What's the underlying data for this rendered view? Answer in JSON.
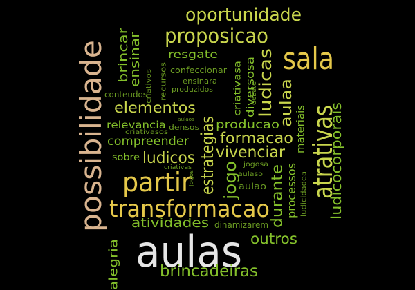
{
  "colors": {
    "background": "#000000",
    "beige": "#d9b48f",
    "gold": "#e5c84a",
    "yellow_green": "#c9d64d",
    "green": "#84c02b",
    "dark_green": "#6a9a22",
    "white": "#e6e6e6"
  },
  "words": [
    {
      "text": "aulas",
      "color": "#e6e6e6"
    },
    {
      "text": "possibilidade",
      "color": "#d9b48f"
    },
    {
      "text": "transformacao",
      "color": "#e5c84a"
    },
    {
      "text": "sala",
      "color": "#e5c84a"
    },
    {
      "text": "partir",
      "color": "#e5c84a"
    },
    {
      "text": "atrativas",
      "color": "#c9d64d"
    },
    {
      "text": "proposicao",
      "color": "#c9d64d"
    },
    {
      "text": "oportunidade",
      "color": "#c9d64d"
    },
    {
      "text": "estrategias",
      "color": "#c9d64d"
    },
    {
      "text": "ludicas",
      "color": "#c9d64d"
    },
    {
      "text": "aulaa",
      "color": "#c9d64d"
    },
    {
      "text": "elementos",
      "color": "#c9d64d"
    },
    {
      "text": "formacao",
      "color": "#c9d64d"
    },
    {
      "text": "vivenciar",
      "color": "#c9d64d"
    },
    {
      "text": "ludicos",
      "color": "#c9d64d"
    },
    {
      "text": "jogo",
      "color": "#84c02b"
    },
    {
      "text": "ludicocorporais",
      "color": "#84c02b"
    },
    {
      "text": "brincadeiras",
      "color": "#84c02b"
    },
    {
      "text": "atividades",
      "color": "#84c02b"
    },
    {
      "text": "durante",
      "color": "#84c02b"
    },
    {
      "text": "outros",
      "color": "#84c02b"
    },
    {
      "text": "brincar",
      "color": "#84c02b"
    },
    {
      "text": "ensinar",
      "color": "#84c02b"
    },
    {
      "text": "compreender",
      "color": "#84c02b"
    },
    {
      "text": "producao",
      "color": "#84c02b"
    },
    {
      "text": "processos",
      "color": "#84c02b"
    },
    {
      "text": "alegria",
      "color": "#84c02b"
    },
    {
      "text": "diversosa",
      "color": "#84c02b"
    },
    {
      "text": "materiais",
      "color": "#84c02b"
    },
    {
      "text": "resgate",
      "color": "#84c02b"
    },
    {
      "text": "relevancia",
      "color": "#84c02b"
    },
    {
      "text": "sobre",
      "color": "#84c02b"
    },
    {
      "text": "criativasa",
      "color": "#84c02b"
    },
    {
      "text": "confeccionar",
      "color": "#6a9a22"
    },
    {
      "text": "recursos",
      "color": "#6a9a22"
    },
    {
      "text": "criativos",
      "color": "#6a9a22"
    },
    {
      "text": "conteudos",
      "color": "#6a9a22"
    },
    {
      "text": "ensinara",
      "color": "#6a9a22"
    },
    {
      "text": "produzidos",
      "color": "#6a9a22"
    },
    {
      "text": "debate",
      "color": "#6a9a22"
    },
    {
      "text": "densos",
      "color": "#6a9a22"
    },
    {
      "text": "criativasos",
      "color": "#6a9a22"
    },
    {
      "text": "aulaos",
      "color": "#6a9a22"
    },
    {
      "text": "criativas",
      "color": "#6a9a22"
    },
    {
      "text": "jogosa",
      "color": "#6a9a22"
    },
    {
      "text": "aulaso",
      "color": "#6a9a22"
    },
    {
      "text": "jogos",
      "color": "#6a9a22"
    },
    {
      "text": "aulao",
      "color": "#6a9a22"
    },
    {
      "text": "ludicidadea",
      "color": "#6a9a22"
    },
    {
      "text": "dinamizarem",
      "color": "#6a9a22"
    }
  ]
}
